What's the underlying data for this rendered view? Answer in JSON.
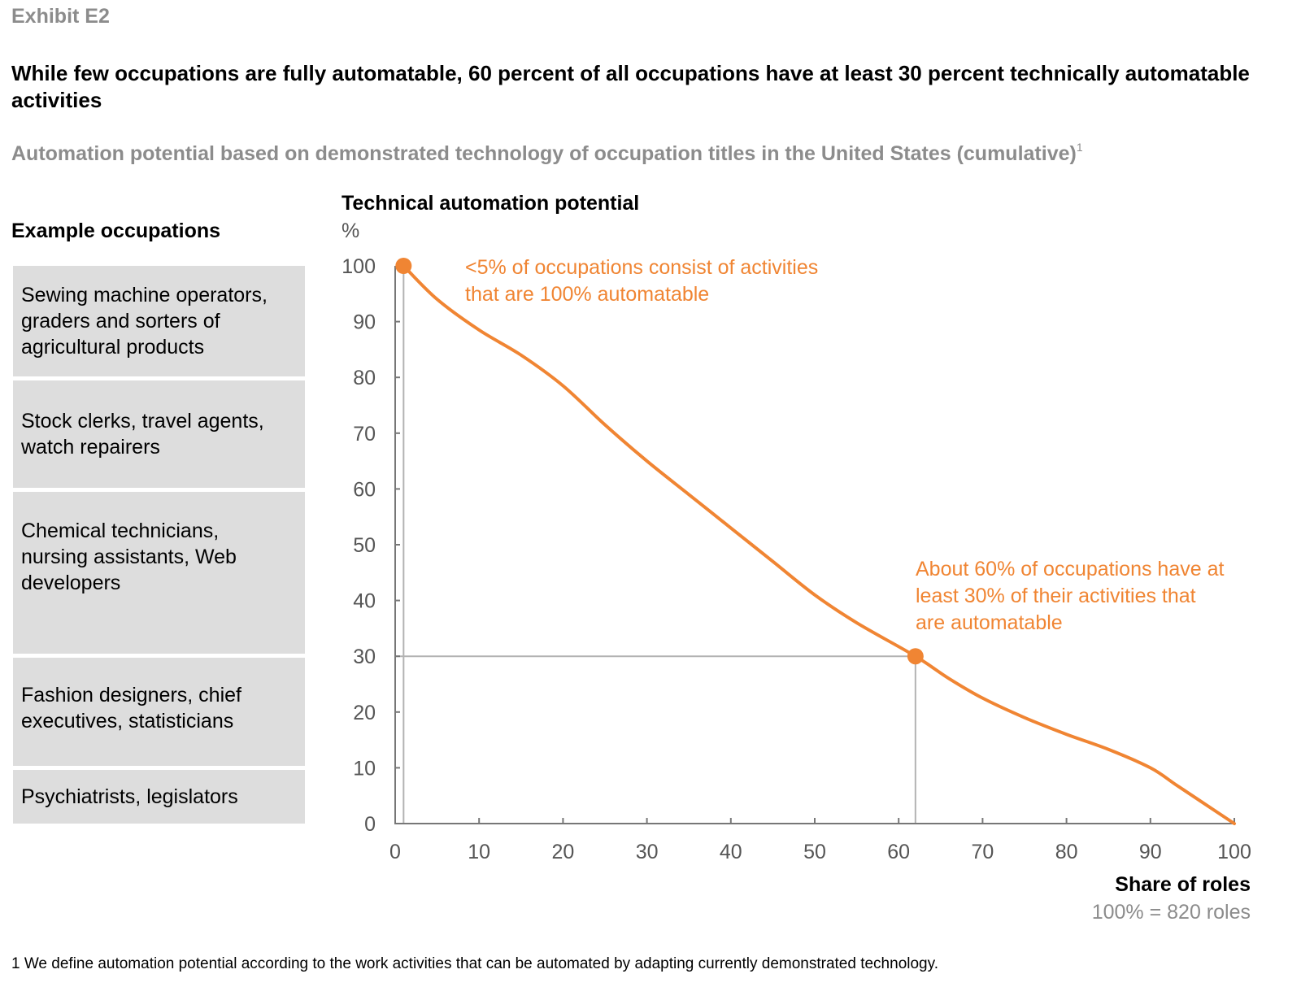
{
  "exhibit_label": "Exhibit E2",
  "headline": "While few occupations are fully automatable, 60 percent of all occupations have at least 30 percent technically automatable activities",
  "subtitle": "Automation potential based on demonstrated technology of occupation titles in the United States (cumulative)",
  "subtitle_footnote_marker": "1",
  "occupations": {
    "header": "Example occupations",
    "items": [
      "Sewing machine operators, graders and sorters of agricultural products",
      "Stock clerks, travel agents, watch repairers",
      "Chemical technicians, nursing assistants, Web developers",
      "Fashion designers, chief executives, statisticians",
      "Psychiatrists, legislators"
    ]
  },
  "colors": {
    "accent": "#f08533",
    "axis": "#777777",
    "guide": "#b3b3b3",
    "box": "#dddddd"
  },
  "footnote": "1  We define automation potential according to the work activities that can be automated by adapting currently demonstrated technology.",
  "chart_data": {
    "type": "line",
    "title": "Technical automation potential",
    "ylabel": "Technical automation potential",
    "yunit": "%",
    "xlabel": "Share of roles",
    "xnote": "100% = 820 roles",
    "xlim": [
      0,
      100
    ],
    "ylim": [
      0,
      100
    ],
    "xticks": [
      0,
      10,
      20,
      30,
      40,
      50,
      60,
      70,
      80,
      90,
      100
    ],
    "yticks": [
      0,
      10,
      20,
      30,
      40,
      50,
      60,
      70,
      80,
      90,
      100
    ],
    "grid": false,
    "series": [
      {
        "name": "Automation potential (cumulative)",
        "x": [
          1,
          5,
          10,
          15,
          20,
          25,
          30,
          35,
          40,
          45,
          50,
          55,
          62,
          66,
          70,
          75,
          80,
          85,
          90,
          93,
          96,
          100
        ],
        "y": [
          100,
          94,
          88.5,
          84,
          78.5,
          71.5,
          65,
          59,
          53,
          47,
          41,
          36,
          30,
          26,
          22.5,
          19,
          16,
          13.3,
          10,
          7,
          4,
          0
        ]
      }
    ],
    "highlight_points": [
      {
        "x": 1,
        "y": 100
      },
      {
        "x": 62,
        "y": 30
      }
    ],
    "guide_lines": [
      {
        "type": "vertical",
        "x": 1,
        "from_y": 0,
        "to_y": 100
      },
      {
        "type": "horizontal",
        "y": 30,
        "from_x": 0,
        "to_x": 62
      },
      {
        "type": "vertical",
        "x": 62,
        "from_y": 0,
        "to_y": 30
      }
    ],
    "annotations": [
      "<5% of occupations consist of activities that are 100% automatable",
      "About 60% of occupations have at least 30% of their activities that are automatable"
    ]
  }
}
